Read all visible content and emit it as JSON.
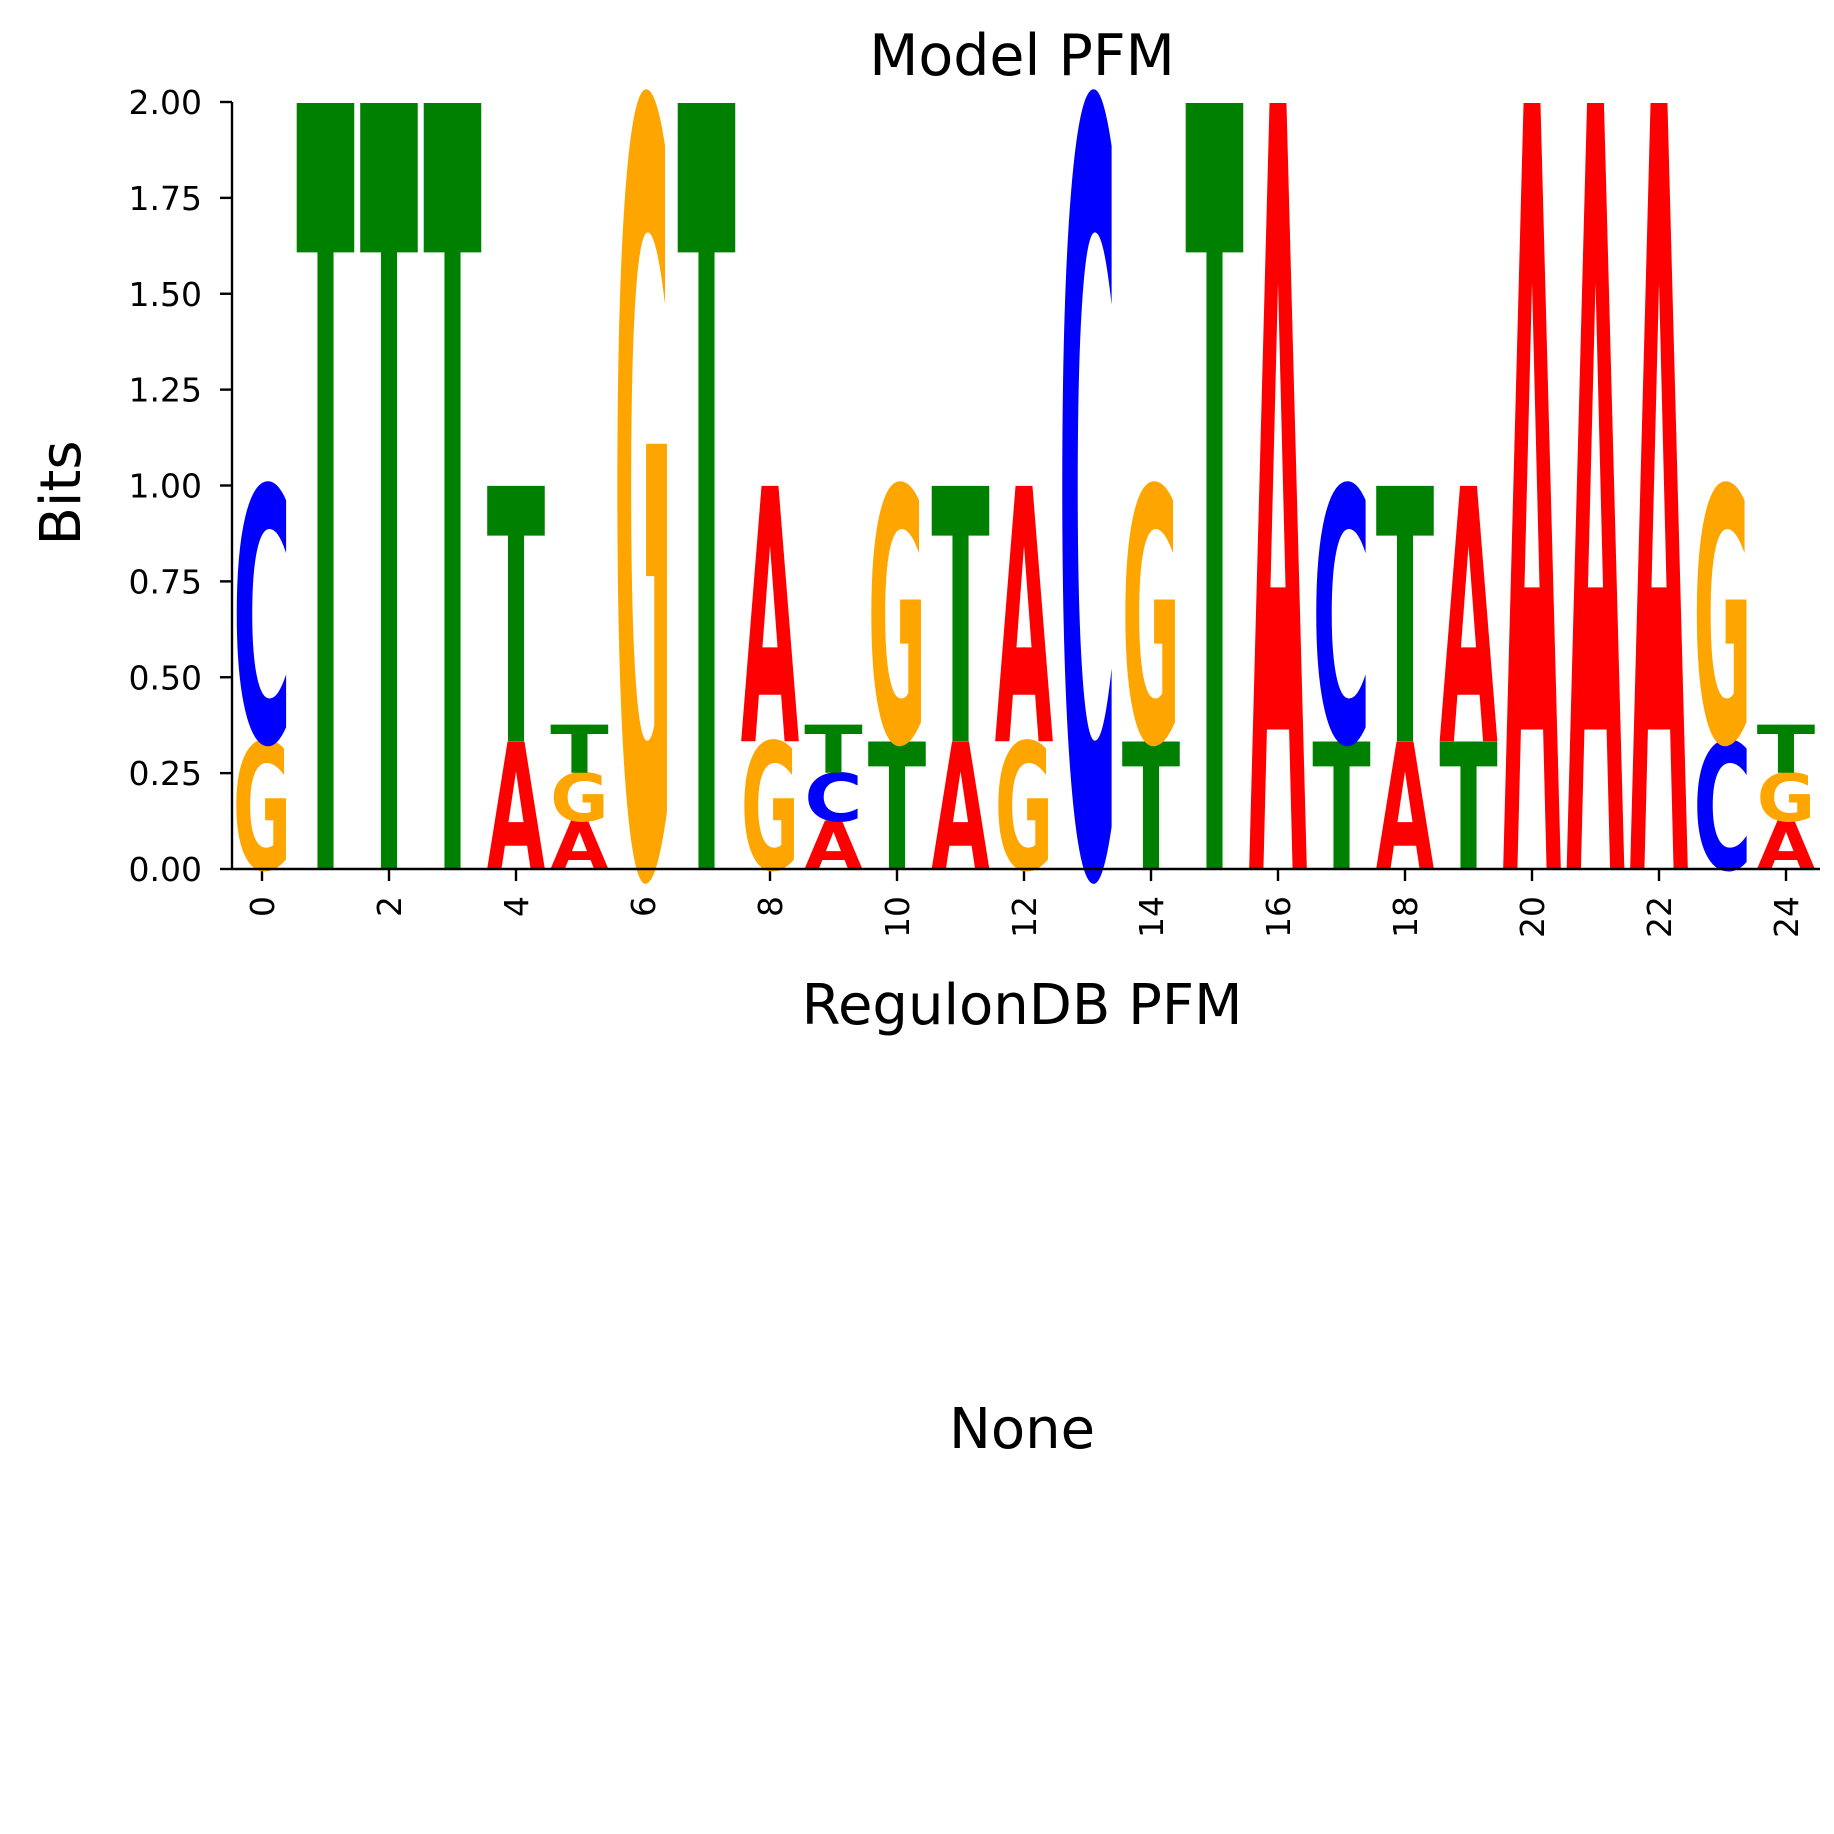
{
  "chart_data": {
    "type": "sequence-logo",
    "title": "Model PFM",
    "xlabel": "RegulonDB PFM",
    "ylabel": "Bits",
    "ylim": [
      0,
      2.0
    ],
    "yticks": [
      "0.00",
      "0.25",
      "0.50",
      "0.75",
      "1.00",
      "1.25",
      "1.50",
      "1.75",
      "2.00"
    ],
    "xticks": [
      "0",
      "2",
      "4",
      "6",
      "8",
      "10",
      "12",
      "14",
      "16",
      "18",
      "20",
      "22",
      "24"
    ],
    "colors": {
      "A": "#ff0000",
      "C": "#0000ff",
      "G": "#ffa500",
      "T": "#008000"
    },
    "positions": [
      {
        "pos": 0,
        "stack": [
          {
            "base": "G",
            "bits": 0.333
          },
          {
            "base": "C",
            "bits": 0.667
          }
        ]
      },
      {
        "pos": 1,
        "stack": [
          {
            "base": "T",
            "bits": 2.0
          }
        ]
      },
      {
        "pos": 2,
        "stack": [
          {
            "base": "T",
            "bits": 2.0
          }
        ]
      },
      {
        "pos": 3,
        "stack": [
          {
            "base": "T",
            "bits": 2.0
          }
        ]
      },
      {
        "pos": 4,
        "stack": [
          {
            "base": "A",
            "bits": 0.333
          },
          {
            "base": "T",
            "bits": 0.667
          }
        ]
      },
      {
        "pos": 5,
        "stack": [
          {
            "base": "A",
            "bits": 0.125
          },
          {
            "base": "G",
            "bits": 0.125
          },
          {
            "base": "T",
            "bits": 0.125
          }
        ]
      },
      {
        "pos": 6,
        "stack": [
          {
            "base": "G",
            "bits": 2.0
          }
        ]
      },
      {
        "pos": 7,
        "stack": [
          {
            "base": "T",
            "bits": 2.0
          }
        ]
      },
      {
        "pos": 8,
        "stack": [
          {
            "base": "G",
            "bits": 0.333
          },
          {
            "base": "A",
            "bits": 0.667
          }
        ]
      },
      {
        "pos": 9,
        "stack": [
          {
            "base": "A",
            "bits": 0.125
          },
          {
            "base": "C",
            "bits": 0.125
          },
          {
            "base": "T",
            "bits": 0.125
          }
        ]
      },
      {
        "pos": 10,
        "stack": [
          {
            "base": "T",
            "bits": 0.333
          },
          {
            "base": "G",
            "bits": 0.667
          }
        ]
      },
      {
        "pos": 11,
        "stack": [
          {
            "base": "A",
            "bits": 0.333
          },
          {
            "base": "T",
            "bits": 0.667
          }
        ]
      },
      {
        "pos": 12,
        "stack": [
          {
            "base": "G",
            "bits": 0.333
          },
          {
            "base": "A",
            "bits": 0.667
          }
        ]
      },
      {
        "pos": 13,
        "stack": [
          {
            "base": "C",
            "bits": 2.0
          }
        ]
      },
      {
        "pos": 14,
        "stack": [
          {
            "base": "T",
            "bits": 0.333
          },
          {
            "base": "G",
            "bits": 0.667
          }
        ]
      },
      {
        "pos": 15,
        "stack": [
          {
            "base": "T",
            "bits": 2.0
          }
        ]
      },
      {
        "pos": 16,
        "stack": [
          {
            "base": "A",
            "bits": 2.0
          }
        ]
      },
      {
        "pos": 17,
        "stack": [
          {
            "base": "T",
            "bits": 0.333
          },
          {
            "base": "C",
            "bits": 0.667
          }
        ]
      },
      {
        "pos": 18,
        "stack": [
          {
            "base": "A",
            "bits": 0.333
          },
          {
            "base": "T",
            "bits": 0.667
          }
        ]
      },
      {
        "pos": 19,
        "stack": [
          {
            "base": "T",
            "bits": 0.333
          },
          {
            "base": "A",
            "bits": 0.667
          }
        ]
      },
      {
        "pos": 20,
        "stack": [
          {
            "base": "A",
            "bits": 2.0
          }
        ]
      },
      {
        "pos": 21,
        "stack": [
          {
            "base": "A",
            "bits": 2.0
          }
        ]
      },
      {
        "pos": 22,
        "stack": [
          {
            "base": "A",
            "bits": 2.0
          }
        ]
      },
      {
        "pos": 23,
        "stack": [
          {
            "base": "C",
            "bits": 0.333
          },
          {
            "base": "G",
            "bits": 0.667
          }
        ]
      },
      {
        "pos": 24,
        "stack": [
          {
            "base": "A",
            "bits": 0.125
          },
          {
            "base": "G",
            "bits": 0.125
          },
          {
            "base": "T",
            "bits": 0.125
          }
        ]
      }
    ]
  },
  "second_panel": {
    "label": "None"
  }
}
